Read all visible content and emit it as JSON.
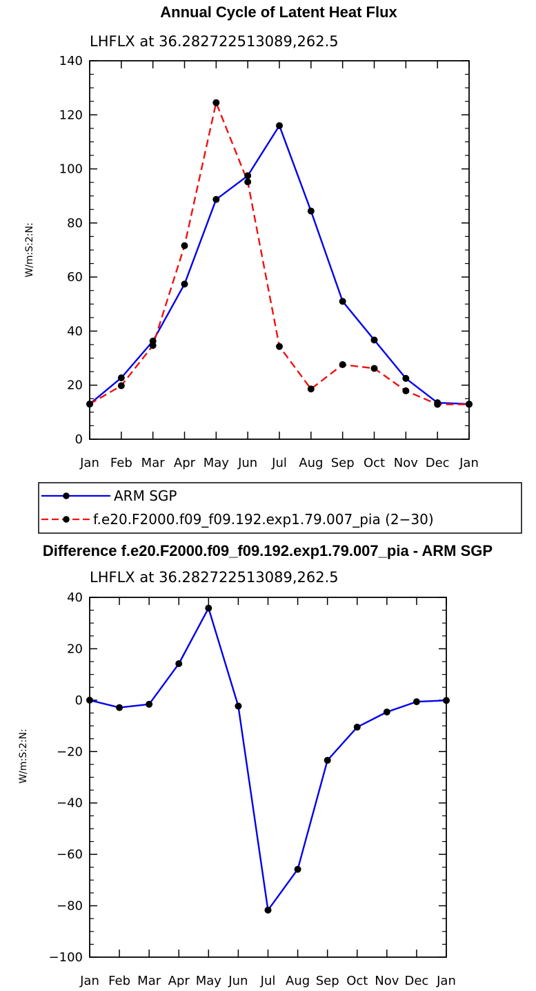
{
  "chart_data": [
    {
      "type": "line",
      "title": "Annual Cycle of Latent Heat Flux",
      "subtitle": "LHFLX at 36.282722513089,262.5",
      "ylabel": "W/m:S:2:N:",
      "xlabel": "",
      "categories": [
        "Jan",
        "Feb",
        "Mar",
        "Apr",
        "May",
        "Jun",
        "Jul",
        "Aug",
        "Sep",
        "Oct",
        "Nov",
        "Dec",
        "Jan"
      ],
      "ylim": [
        0,
        140
      ],
      "yticks": [
        0,
        20,
        40,
        60,
        80,
        100,
        120,
        140
      ],
      "series": [
        {
          "name": "ARM SGP",
          "color": "#0000ee",
          "dash": "solid",
          "values": [
            13,
            22.7,
            36.3,
            57.4,
            88.7,
            97.5,
            116,
            84.4,
            51,
            36.7,
            22.5,
            13.5,
            13
          ]
        },
        {
          "name": "f.e20.F2000.f09_f09.192.exp1.79.007_pia (2−30)",
          "color": "#ee1111",
          "dash": "dashed",
          "values": [
            13,
            19.8,
            34.7,
            71.6,
            124.5,
            95.2,
            34.3,
            18.6,
            27.6,
            26.2,
            17.9,
            12.9,
            12.9
          ]
        }
      ]
    },
    {
      "type": "line",
      "title": "Difference f.e20.F2000.f09_f09.192.exp1.79.007_pia - ARM SGP",
      "subtitle": "LHFLX at 36.282722513089,262.5",
      "ylabel": "W/m:S:2:N:",
      "xlabel": "",
      "categories": [
        "Jan",
        "Feb",
        "Mar",
        "Apr",
        "May",
        "Jun",
        "Jul",
        "Aug",
        "Sep",
        "Oct",
        "Nov",
        "Dec",
        "Jan"
      ],
      "ylim": [
        -100,
        40
      ],
      "yticks": [
        -100,
        -80,
        -60,
        -40,
        -20,
        0,
        20,
        40
      ],
      "ytick_labels": [
        "−100",
        "−80",
        "−60",
        "−40",
        "−20",
        "0",
        "20",
        "40"
      ],
      "series": [
        {
          "name": "Difference",
          "color": "#0000ee",
          "dash": "solid",
          "values": [
            0,
            -2.9,
            -1.6,
            14.2,
            35.8,
            -2.3,
            -81.7,
            -65.8,
            -23.4,
            -10.5,
            -4.6,
            -0.6,
            -0.1
          ]
        }
      ]
    }
  ]
}
